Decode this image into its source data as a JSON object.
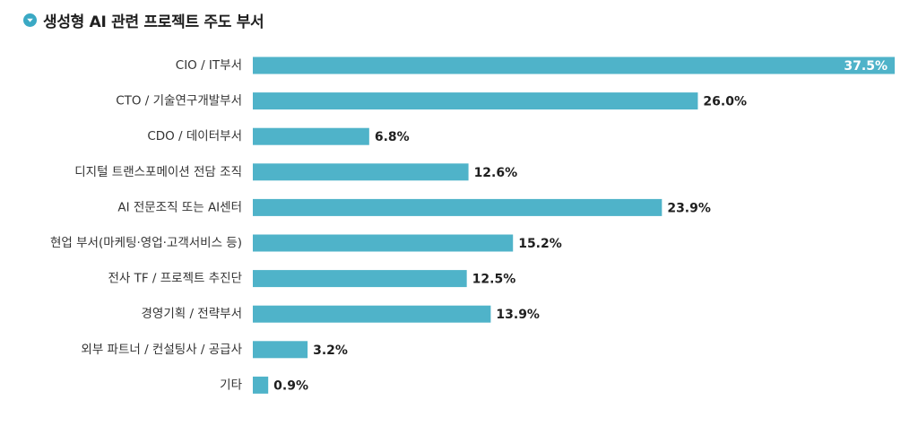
{
  "header": {
    "title": "생성형 AI 관련 프로젝트 주도 부서",
    "icon": "down-arrow-circle-icon"
  },
  "colors": {
    "bar": "#4fb3c9",
    "accent": "#3aa9c4",
    "text": "#222222"
  },
  "chart_data": {
    "type": "bar",
    "orientation": "horizontal",
    "title": "생성형 AI 관련 프로젝트 주도 부서",
    "categories": [
      "CIO / IT부서",
      "CTO / 기술연구개발부서",
      "CDO / 데이터부서",
      "디지털 트랜스포메이션 전담 조직",
      "AI 전문조직 또는 AI센터",
      "현업 부서(마케팅·영업·고객서비스 등)",
      "전사 TF / 프로젝트 추진단",
      "경영기획 / 전략부서",
      "외부 파트너 / 컨설팅사 / 공급사",
      "기타"
    ],
    "values": [
      37.5,
      26.0,
      6.8,
      12.6,
      23.9,
      15.2,
      12.5,
      13.9,
      3.2,
      0.9
    ],
    "value_labels": [
      "37.5%",
      "26.0%",
      "6.8%",
      "12.6%",
      "23.9%",
      "15.2%",
      "12.5%",
      "13.9%",
      "3.2%",
      "0.9%"
    ],
    "xlim": [
      0,
      37.5
    ],
    "grid": false,
    "legend": "none"
  }
}
